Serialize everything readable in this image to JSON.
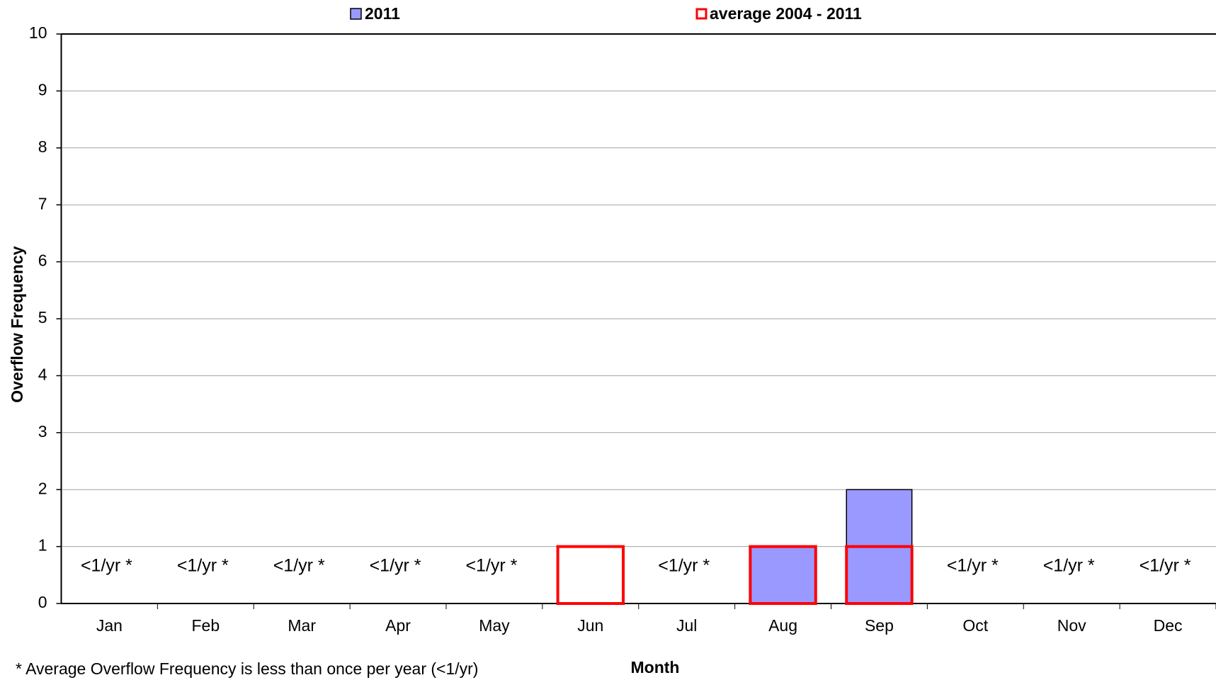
{
  "chart_data": {
    "type": "bar",
    "overlap": true,
    "x_label": "Month",
    "y_label": "Overflow Frequency",
    "categories": [
      "Jan",
      "Feb",
      "Mar",
      "Apr",
      "May",
      "Jun",
      "Jul",
      "Aug",
      "Sep",
      "Oct",
      "Nov",
      "Dec"
    ],
    "series": [
      {
        "name": "2011",
        "color": "#9999ff",
        "style": "filled",
        "values": [
          0,
          0,
          0,
          0,
          0,
          0,
          0,
          1,
          2,
          0,
          0,
          0
        ]
      },
      {
        "name": "average 2004 - 2011",
        "color": "#ff0000",
        "style": "outline",
        "values": [
          0,
          0,
          0,
          0,
          0,
          1,
          0,
          1,
          1,
          0,
          0,
          0
        ]
      }
    ],
    "month_notes": [
      "<1/yr *",
      "<1/yr *",
      "<1/yr *",
      "<1/yr *",
      "<1/yr *",
      null,
      "<1/yr *",
      null,
      null,
      "<1/yr *",
      "<1/yr *",
      "<1/yr *"
    ],
    "footnote": "* Average Overflow Frequency is less than once per year (<1/yr)",
    "ylim": [
      0,
      10
    ],
    "yticks": [
      0,
      1,
      2,
      3,
      4,
      5,
      6,
      7,
      8,
      9,
      10
    ],
    "grid": true,
    "legend": "top"
  }
}
